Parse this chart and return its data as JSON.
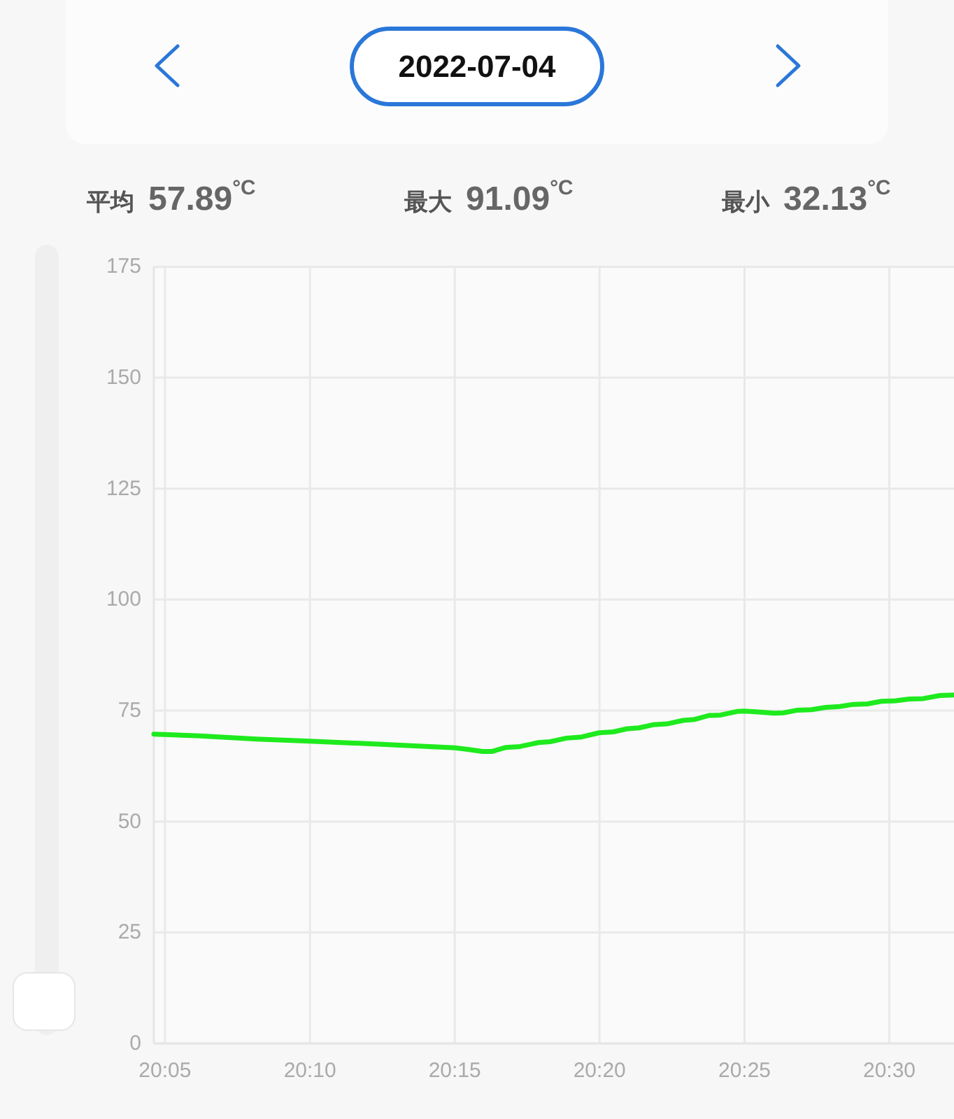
{
  "chart_data": {
    "type": "line",
    "title": "2022-07-04",
    "annotations": [
      "平均 57.89$^{°C}$",
      "最大 91.09$^{°C}$",
      "最小 32.13$^{°C}$"
    ],
    "x": [
      20.0769,
      20.1037,
      20.1359,
      20.1667,
      20.2081,
      20.25,
      20.2567,
      20.266,
      20.2715,
      20.2795,
      20.2875,
      20.2982,
      20.3049,
      20.3143,
      20.3223,
      20.333,
      20.3411,
      20.3492,
      20.356,
      20.364,
      20.372,
      20.3814,
      20.3881,
      20.3962,
      20.4029,
      20.4123,
      20.4167,
      20.4244,
      20.4337,
      20.4391,
      20.4472,
      20.4552,
      20.4632,
      20.4713,
      20.4793,
      20.4873,
      20.4954,
      20.5035,
      20.5115,
      20.5195,
      20.529,
      20.5372
    ],
    "series": [
      {
        "color": "#1eea1e",
        "values": [
          69.7,
          69.3,
          68.6,
          68.1,
          67.4,
          66.6,
          66.3,
          65.8,
          65.8,
          66.7,
          66.9,
          67.8,
          68.0,
          68.8,
          69.0,
          70.0,
          70.2,
          70.9,
          71.1,
          71.8,
          72.0,
          72.8,
          73.0,
          73.9,
          74.0,
          74.8,
          74.9,
          74.7,
          74.4,
          74.5,
          75.1,
          75.2,
          75.7,
          75.9,
          76.4,
          76.5,
          77.1,
          77.2,
          77.6,
          77.7,
          78.4,
          78.5
        ]
      }
    ],
    "xlim": [
      20.0769,
      20.5372
    ],
    "xticks": [
      {
        "value": 20.0833,
        "label": "20:05"
      },
      {
        "value": 20.1667,
        "label": "20:10"
      },
      {
        "value": 20.25,
        "label": "20:15"
      },
      {
        "value": 20.3333,
        "label": "20:20"
      },
      {
        "value": 20.4167,
        "label": "20:25"
      },
      {
        "value": 20.5,
        "label": "20:30"
      }
    ],
    "ylim": [
      0,
      175
    ],
    "yticks": [
      0,
      25,
      50,
      75,
      100,
      125,
      150,
      175
    ],
    "grid": true
  }
}
